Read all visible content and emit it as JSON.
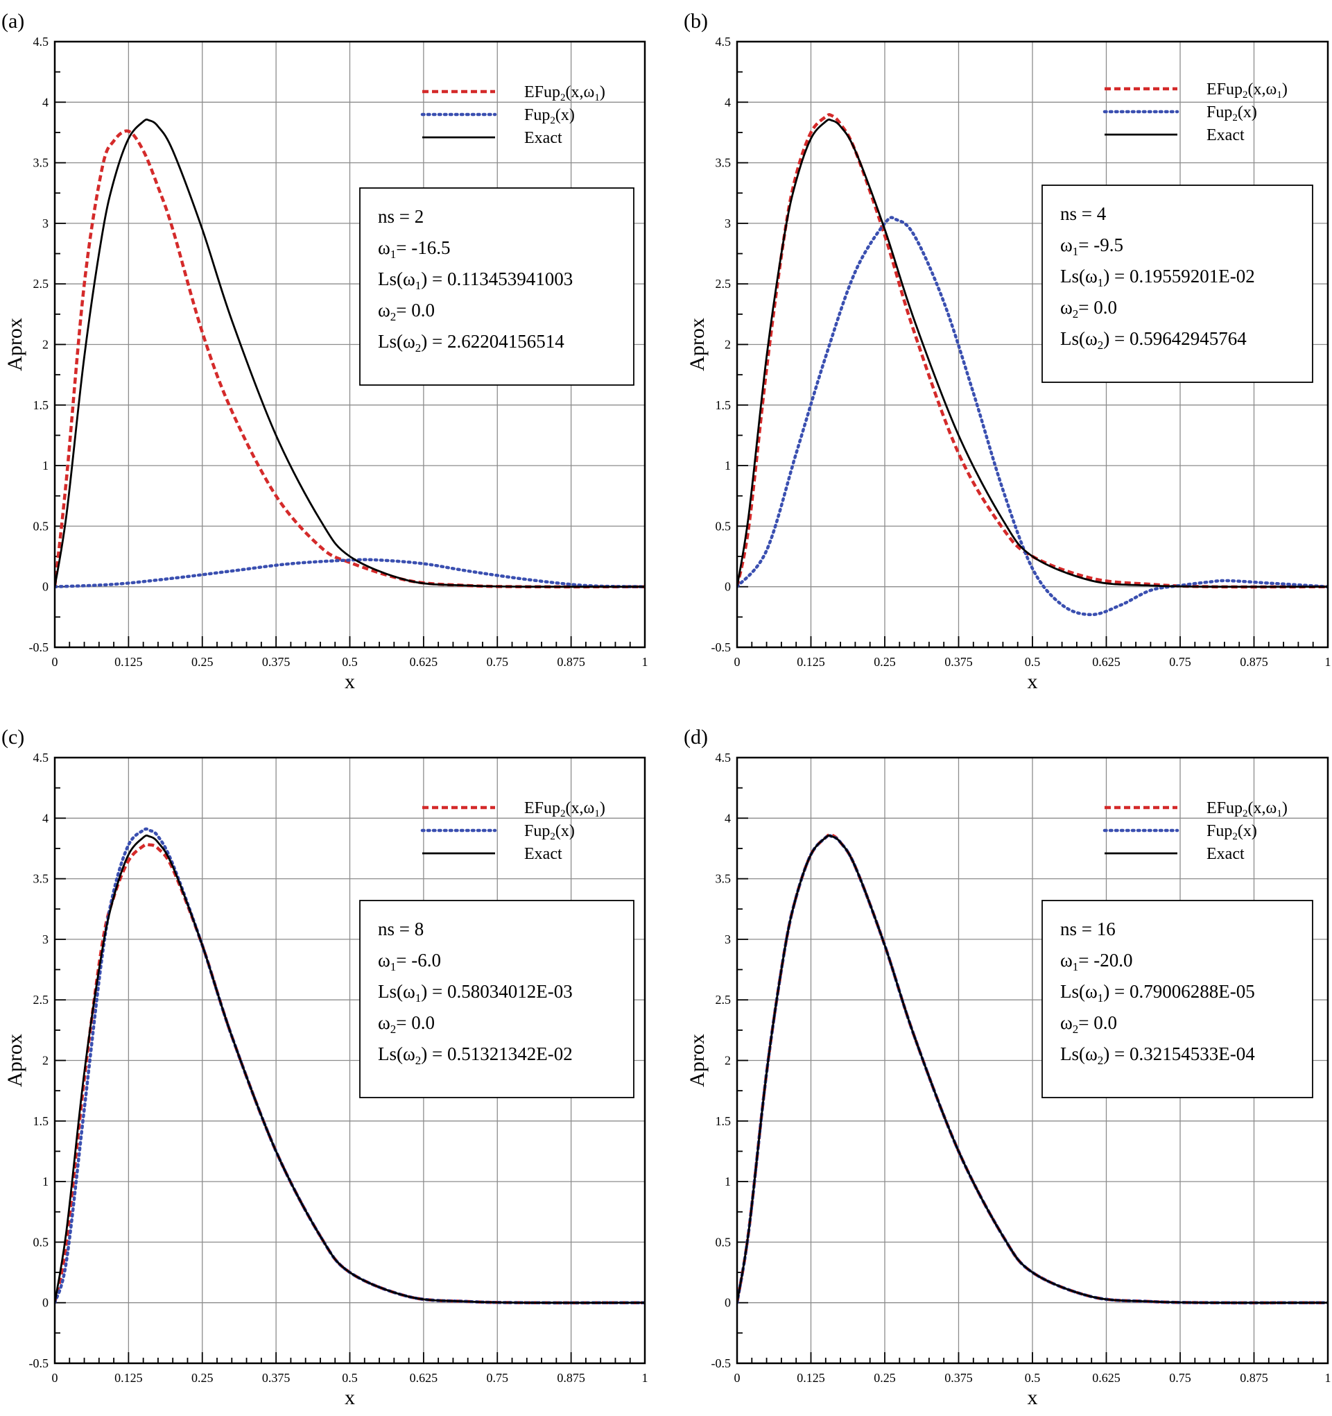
{
  "colors": {
    "efup": "#d42a2a",
    "fup": "#3a4fb0",
    "exact": "#000000",
    "grid": "#8c8c8c"
  },
  "chart_data": [
    {
      "type": "line",
      "panel_label": "(a)",
      "xlabel": "x",
      "ylabel": "Aprox",
      "xlim": [
        0,
        1
      ],
      "ylim": [
        -0.5,
        4.5
      ],
      "xticks": [
        "0",
        "0.125",
        "0.25",
        "0.375",
        "0.5",
        "0.625",
        "0.75",
        "0.875",
        "1"
      ],
      "yticks": [
        "-0.5",
        "0",
        "0.5",
        "1",
        "1.5",
        "2",
        "2.5",
        "3",
        "3.5",
        "4",
        "4.5"
      ],
      "legend": {
        "efup": {
          "main": "EFup",
          "sub": "2",
          "args": "(x,ω",
          "argsub": "1",
          "close": ")"
        },
        "fup": {
          "main": "Fup",
          "sub": "2",
          "args": "(x)"
        },
        "exact": "Exact"
      },
      "info": [
        {
          "pre": "ns = 2"
        },
        {
          "pre": "ω",
          "sub": "1",
          "post": "= -16.5"
        },
        {
          "pre": "Ls(ω",
          "sub": "1",
          "post": ") = 0.113453941003"
        },
        {
          "pre": "ω",
          "sub": "2",
          "post": "= 0.0"
        },
        {
          "pre": "Ls(ω",
          "sub": "2",
          "post": ") = 2.62204156514"
        }
      ],
      "series": [
        {
          "name": "EFup2(x,ω1)",
          "style": "efup",
          "x": [
            0,
            0.02,
            0.05,
            0.08,
            0.1,
            0.125,
            0.15,
            0.175,
            0.2,
            0.25,
            0.3,
            0.375,
            0.45,
            0.5,
            0.6,
            0.7,
            0.8,
            1
          ],
          "y": [
            0,
            0.9,
            2.5,
            3.45,
            3.68,
            3.76,
            3.6,
            3.3,
            2.95,
            2.1,
            1.45,
            0.75,
            0.33,
            0.2,
            0.05,
            0.01,
            0,
            0
          ]
        },
        {
          "name": "Fup2(x)",
          "style": "fup",
          "x": [
            0,
            0.1,
            0.2,
            0.3,
            0.4,
            0.5,
            0.55,
            0.625,
            0.7,
            0.8,
            0.9,
            1
          ],
          "y": [
            0,
            0.02,
            0.07,
            0.13,
            0.19,
            0.22,
            0.22,
            0.19,
            0.13,
            0.06,
            0.01,
            0
          ]
        },
        {
          "name": "Exact",
          "style": "exact",
          "x": [
            0,
            0.02,
            0.05,
            0.08,
            0.1,
            0.125,
            0.15,
            0.16,
            0.175,
            0.2,
            0.25,
            0.3,
            0.375,
            0.45,
            0.5,
            0.6,
            0.7,
            0.8,
            1
          ],
          "y": [
            0,
            0.6,
            1.9,
            2.9,
            3.35,
            3.7,
            3.84,
            3.85,
            3.8,
            3.6,
            2.95,
            2.2,
            1.25,
            0.55,
            0.25,
            0.05,
            0.01,
            0,
            0
          ]
        }
      ]
    },
    {
      "type": "line",
      "panel_label": "(b)",
      "xlabel": "x",
      "ylabel": "Aprox",
      "xlim": [
        0,
        1
      ],
      "ylim": [
        -0.5,
        4.5
      ],
      "xticks": [
        "0",
        "0.125",
        "0.25",
        "0.375",
        "0.5",
        "0.625",
        "0.75",
        "0.875",
        "1"
      ],
      "yticks": [
        "-0.5",
        "0",
        "0.5",
        "1",
        "1.5",
        "2",
        "2.5",
        "3",
        "3.5",
        "4",
        "4.5"
      ],
      "legend": {
        "efup": {
          "main": "EFup",
          "sub": "2",
          "args": "(x,ω",
          "argsub": "1",
          "close": ")"
        },
        "fup": {
          "main": "Fup",
          "sub": "2",
          "args": "(x)"
        },
        "exact": "Exact"
      },
      "info": [
        {
          "pre": "ns = 4"
        },
        {
          "pre": "ω",
          "sub": "1",
          "post": "= -9.5"
        },
        {
          "pre": "Ls(ω",
          "sub": "1",
          "post": ") = 0.19559201E-02"
        },
        {
          "pre": "ω",
          "sub": "2",
          "post": "= 0.0"
        },
        {
          "pre": "Ls(ω",
          "sub": "2",
          "post": ") = 0.59642945764"
        }
      ],
      "series": [
        {
          "name": "EFup2(x,ω1)",
          "style": "efup",
          "x": [
            0,
            0.02,
            0.05,
            0.08,
            0.1,
            0.125,
            0.15,
            0.16,
            0.175,
            0.2,
            0.25,
            0.3,
            0.375,
            0.45,
            0.5,
            0.6,
            0.7,
            0.8,
            1
          ],
          "y": [
            0,
            0.5,
            1.8,
            2.9,
            3.4,
            3.75,
            3.88,
            3.89,
            3.82,
            3.6,
            2.9,
            2.1,
            1.1,
            0.48,
            0.25,
            0.07,
            0.02,
            0,
            0
          ]
        },
        {
          "name": "Fup2(x)",
          "style": "fup",
          "x": [
            0,
            0.05,
            0.1,
            0.15,
            0.2,
            0.25,
            0.27,
            0.3,
            0.35,
            0.4,
            0.45,
            0.5,
            0.55,
            0.6,
            0.65,
            0.7,
            0.75,
            0.8,
            0.83,
            0.9,
            1
          ],
          "y": [
            0,
            0.3,
            1.1,
            1.9,
            2.6,
            3.0,
            3.03,
            2.9,
            2.35,
            1.6,
            0.8,
            0.15,
            -0.15,
            -0.23,
            -0.15,
            -0.03,
            0.01,
            0.04,
            0.05,
            0.03,
            0
          ]
        },
        {
          "name": "Exact",
          "style": "exact",
          "x": [
            0,
            0.02,
            0.05,
            0.08,
            0.1,
            0.125,
            0.15,
            0.16,
            0.175,
            0.2,
            0.25,
            0.3,
            0.375,
            0.45,
            0.5,
            0.6,
            0.7,
            0.8,
            1
          ],
          "y": [
            0,
            0.6,
            1.9,
            2.9,
            3.35,
            3.7,
            3.84,
            3.85,
            3.8,
            3.6,
            2.95,
            2.2,
            1.25,
            0.55,
            0.25,
            0.05,
            0.01,
            0,
            0
          ]
        }
      ]
    },
    {
      "type": "line",
      "panel_label": "(c)",
      "xlabel": "x",
      "ylabel": "Aprox",
      "xlim": [
        0,
        1
      ],
      "ylim": [
        -0.5,
        4.5
      ],
      "xticks": [
        "0",
        "0.125",
        "0.25",
        "0.375",
        "0.5",
        "0.625",
        "0.75",
        "0.875",
        "1"
      ],
      "yticks": [
        "-0.5",
        "0",
        "0.5",
        "1",
        "1.5",
        "2",
        "2.5",
        "3",
        "3.5",
        "4",
        "4.5"
      ],
      "legend": {
        "efup": {
          "main": "EFup",
          "sub": "2",
          "args": "(x,ω",
          "argsub": "1",
          "close": ")"
        },
        "fup": {
          "main": "Fup",
          "sub": "2",
          "args": "(x)"
        },
        "exact": "Exact"
      },
      "info": [
        {
          "pre": "ns = 8"
        },
        {
          "pre": "ω",
          "sub": "1",
          "post": "= -6.0"
        },
        {
          "pre": "Ls(ω",
          "sub": "1",
          "post": ") = 0.58034012E-03"
        },
        {
          "pre": "ω",
          "sub": "2",
          "post": "= 0.0"
        },
        {
          "pre": "Ls(ω",
          "sub": "2",
          "post": ") = 0.51321342E-02"
        }
      ],
      "series": [
        {
          "name": "EFup2(x,ω1)",
          "style": "efup",
          "x": [
            0,
            0.02,
            0.05,
            0.08,
            0.1,
            0.125,
            0.15,
            0.16,
            0.175,
            0.2,
            0.25,
            0.3,
            0.375,
            0.45,
            0.5,
            0.6,
            0.7,
            0.8,
            1
          ],
          "y": [
            0,
            0.5,
            1.85,
            2.95,
            3.35,
            3.65,
            3.77,
            3.78,
            3.75,
            3.58,
            2.95,
            2.2,
            1.25,
            0.55,
            0.25,
            0.05,
            0.01,
            0,
            0
          ]
        },
        {
          "name": "Fup2(x)",
          "style": "fup",
          "x": [
            0,
            0.02,
            0.05,
            0.08,
            0.1,
            0.125,
            0.15,
            0.16,
            0.175,
            0.2,
            0.25,
            0.3,
            0.375,
            0.45,
            0.5,
            0.6,
            0.7,
            0.8,
            1
          ],
          "y": [
            0,
            0.35,
            1.6,
            2.85,
            3.4,
            3.78,
            3.9,
            3.9,
            3.85,
            3.62,
            2.95,
            2.2,
            1.25,
            0.55,
            0.25,
            0.05,
            0.01,
            0,
            0
          ]
        },
        {
          "name": "Exact",
          "style": "exact",
          "x": [
            0,
            0.02,
            0.05,
            0.08,
            0.1,
            0.125,
            0.15,
            0.16,
            0.175,
            0.2,
            0.25,
            0.3,
            0.375,
            0.45,
            0.5,
            0.6,
            0.7,
            0.8,
            1
          ],
          "y": [
            0,
            0.6,
            1.9,
            2.9,
            3.35,
            3.7,
            3.84,
            3.85,
            3.8,
            3.6,
            2.95,
            2.2,
            1.25,
            0.55,
            0.25,
            0.05,
            0.01,
            0,
            0
          ]
        }
      ]
    },
    {
      "type": "line",
      "panel_label": "(d)",
      "xlabel": "x",
      "ylabel": "Aprox",
      "xlim": [
        0,
        1
      ],
      "ylim": [
        -0.5,
        4.5
      ],
      "xticks": [
        "0",
        "0.125",
        "0.25",
        "0.375",
        "0.5",
        "0.625",
        "0.75",
        "0.875",
        "1"
      ],
      "yticks": [
        "-0.5",
        "0",
        "0.5",
        "1",
        "1.5",
        "2",
        "2.5",
        "3",
        "3.5",
        "4",
        "4.5"
      ],
      "legend": {
        "efup": {
          "main": "EFup",
          "sub": "2",
          "args": "(x,ω",
          "argsub": "1",
          "close": ")"
        },
        "fup": {
          "main": "Fup",
          "sub": "2",
          "args": "(x)"
        },
        "exact": "Exact"
      },
      "info": [
        {
          "pre": "ns = 16"
        },
        {
          "pre": "ω",
          "sub": "1",
          "post": "= -20.0"
        },
        {
          "pre": "Ls(ω",
          "sub": "1",
          "post": ") = 0.79006288E-05"
        },
        {
          "pre": "ω",
          "sub": "2",
          "post": "= 0.0"
        },
        {
          "pre": "Ls(ω",
          "sub": "2",
          "post": ") = 0.32154533E-04"
        }
      ],
      "series": [
        {
          "name": "EFup2(x,ω1)",
          "style": "efup",
          "x": [
            0,
            0.02,
            0.05,
            0.08,
            0.1,
            0.125,
            0.15,
            0.16,
            0.175,
            0.2,
            0.25,
            0.3,
            0.375,
            0.45,
            0.5,
            0.6,
            0.7,
            0.8,
            1
          ],
          "y": [
            0,
            0.6,
            1.9,
            2.9,
            3.35,
            3.7,
            3.84,
            3.86,
            3.8,
            3.6,
            2.95,
            2.2,
            1.25,
            0.55,
            0.25,
            0.05,
            0.01,
            0,
            0
          ]
        },
        {
          "name": "Fup2(x)",
          "style": "fup",
          "x": [
            0,
            0.02,
            0.05,
            0.08,
            0.1,
            0.125,
            0.15,
            0.16,
            0.175,
            0.2,
            0.25,
            0.3,
            0.375,
            0.45,
            0.5,
            0.6,
            0.7,
            0.8,
            1
          ],
          "y": [
            0,
            0.6,
            1.9,
            2.9,
            3.35,
            3.7,
            3.84,
            3.85,
            3.8,
            3.6,
            2.95,
            2.2,
            1.25,
            0.55,
            0.25,
            0.05,
            0.01,
            0,
            0
          ]
        },
        {
          "name": "Exact",
          "style": "exact",
          "x": [
            0,
            0.02,
            0.05,
            0.08,
            0.1,
            0.125,
            0.15,
            0.16,
            0.175,
            0.2,
            0.25,
            0.3,
            0.375,
            0.45,
            0.5,
            0.6,
            0.7,
            0.8,
            1
          ],
          "y": [
            0,
            0.6,
            1.9,
            2.9,
            3.35,
            3.7,
            3.84,
            3.85,
            3.8,
            3.6,
            2.95,
            2.2,
            1.25,
            0.55,
            0.25,
            0.05,
            0.01,
            0,
            0
          ]
        }
      ]
    }
  ]
}
